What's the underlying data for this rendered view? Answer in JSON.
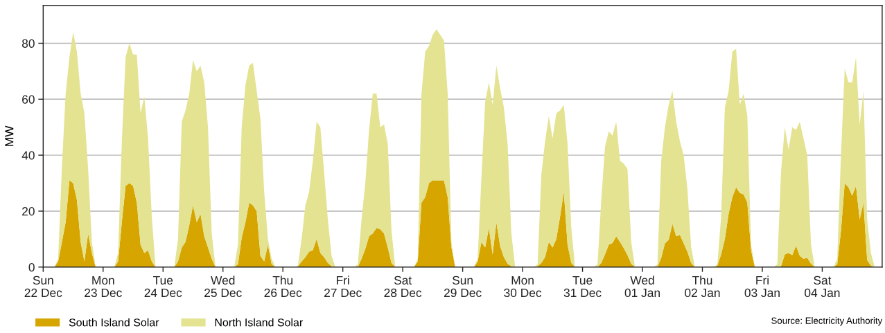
{
  "chart_data": {
    "type": "area",
    "stacked": true,
    "categories": [
      "Sun\n22 Dec",
      null,
      null,
      null,
      null,
      null,
      null,
      null,
      null,
      null,
      null,
      null,
      null,
      null,
      null,
      null,
      "Mon\n23 Dec",
      null,
      null,
      null,
      null,
      null,
      null,
      null,
      null,
      null,
      null,
      null,
      null,
      null,
      null,
      null,
      "Tue\n24 Dec",
      null,
      null,
      null,
      null,
      null,
      null,
      null,
      null,
      null,
      null,
      null,
      null,
      null,
      null,
      null,
      "Wed\n25 Dec",
      null,
      null,
      null,
      null,
      null,
      null,
      null,
      null,
      null,
      null,
      null,
      null,
      null,
      null,
      null,
      "Thu\n26 Dec",
      null,
      null,
      null,
      null,
      null,
      null,
      null,
      null,
      null,
      null,
      null,
      null,
      null,
      null,
      null,
      "Fri\n27 Dec",
      null,
      null,
      null,
      null,
      null,
      null,
      null,
      null,
      null,
      null,
      null,
      null,
      null,
      null,
      null,
      "Sat\n28 Dec",
      null,
      null,
      null,
      null,
      null,
      null,
      null,
      null,
      null,
      null,
      null,
      null,
      null,
      null,
      null,
      "Sun\n29 Dec",
      null,
      null,
      null,
      null,
      null,
      null,
      null,
      null,
      null,
      null,
      null,
      null,
      null,
      null,
      null,
      "Mon\n30 Dec",
      null,
      null,
      null,
      null,
      null,
      null,
      null,
      null,
      null,
      null,
      null,
      null,
      null,
      null,
      null,
      "Tue\n31 Dec",
      null,
      null,
      null,
      null,
      null,
      null,
      null,
      null,
      null,
      null,
      null,
      null,
      null,
      null,
      null,
      "Wed\n01 Jan",
      null,
      null,
      null,
      null,
      null,
      null,
      null,
      null,
      null,
      null,
      null,
      null,
      null,
      null,
      null,
      "Thu\n02 Jan",
      null,
      null,
      null,
      null,
      null,
      null,
      null,
      null,
      null,
      null,
      null,
      null,
      null,
      null,
      null,
      "Fri\n03 Jan",
      null,
      null,
      null,
      null,
      null,
      null,
      null,
      null,
      null,
      null,
      null,
      null,
      null,
      null,
      null,
      "Sat\n04 Jan",
      null,
      null,
      null,
      null,
      null,
      null,
      null,
      null,
      null,
      null,
      null,
      null,
      null,
      null,
      null
    ],
    "series": [
      {
        "name": "South Island Solar",
        "color": "#d6a500",
        "values": [
          0,
          0,
          0,
          0,
          2,
          9,
          16,
          31,
          30,
          24,
          9,
          2,
          12,
          5,
          0,
          0,
          0,
          0,
          0,
          0,
          2,
          16,
          29,
          30,
          29,
          23,
          8,
          5,
          6,
          2,
          0,
          0,
          0,
          0,
          0,
          0,
          2,
          7,
          9,
          15,
          22,
          16,
          19,
          11,
          7,
          3,
          0,
          0,
          0,
          0,
          0,
          0,
          1,
          10.5,
          16,
          23,
          22,
          20,
          4,
          2,
          8,
          1,
          0,
          0,
          0,
          0,
          0,
          0,
          0.2,
          2,
          3.5,
          5.5,
          6,
          10,
          5,
          3.5,
          1.5,
          0.3,
          0,
          0,
          0,
          0,
          0,
          0,
          0,
          3,
          6.5,
          11,
          12,
          14,
          13.5,
          12,
          7,
          1.5,
          0,
          0,
          0,
          0,
          0,
          0,
          2,
          23,
          25,
          30,
          31,
          31,
          31,
          31,
          25,
          7,
          0,
          0,
          0,
          0,
          0,
          0,
          2,
          9,
          7,
          14,
          4.5,
          16,
          7.5,
          3.5,
          1.2,
          0.3,
          0,
          0,
          0,
          0,
          0,
          0,
          0.3,
          1.5,
          3.5,
          9,
          7,
          10,
          18,
          27,
          8,
          1.5,
          0,
          0,
          0,
          0,
          0,
          0,
          0,
          1.5,
          4.5,
          8,
          8.6,
          11,
          9,
          6.8,
          4.3,
          1.2,
          0,
          0,
          0,
          0,
          0,
          0,
          0,
          3.3,
          8.5,
          9.7,
          15.5,
          11,
          11.5,
          8.5,
          5.5,
          1.5,
          0,
          0,
          0,
          0,
          0,
          0,
          0.5,
          4.5,
          10,
          19,
          25,
          28.5,
          26.5,
          26,
          23,
          6,
          0,
          0,
          0,
          0,
          0,
          0,
          0,
          0.3,
          4.5,
          5,
          4.3,
          7.7,
          4,
          3,
          3.3,
          1.2,
          0,
          0,
          0,
          0,
          0,
          0,
          1,
          13,
          30,
          28.5,
          25.5,
          29,
          17,
          23,
          2.5,
          0.5,
          0,
          0
        ]
      },
      {
        "name": "North Island Solar",
        "color": "#e4e391",
        "values": [
          0,
          0,
          0,
          0,
          1,
          27,
          46,
          44,
          54,
          53,
          53,
          53,
          23,
          4,
          0,
          0,
          0,
          0,
          0,
          0,
          3,
          29,
          46,
          50,
          47,
          53,
          47,
          56,
          40,
          16,
          0,
          0,
          0,
          0,
          0,
          0,
          8,
          45,
          47,
          47,
          52,
          54,
          53,
          55,
          43,
          9,
          0,
          0,
          0,
          0,
          0,
          0,
          7,
          39.5,
          49,
          49,
          51,
          43,
          49,
          25,
          2,
          2,
          0,
          0,
          0,
          0,
          0,
          0,
          0.3,
          8,
          18.5,
          21.5,
          32,
          42,
          45,
          30.5,
          15.5,
          3.7,
          0,
          0,
          0,
          0,
          0,
          0,
          1,
          14,
          23.5,
          38,
          50,
          48,
          36.5,
          39,
          37,
          11.5,
          0,
          0,
          0,
          0,
          0,
          0,
          1,
          39,
          52,
          49,
          52,
          54,
          52,
          50,
          37,
          2,
          0,
          0,
          0,
          0,
          0,
          0,
          1,
          23,
          52,
          52,
          53.5,
          56,
          56.5,
          53.5,
          42.8,
          11.7,
          0,
          0,
          0,
          0,
          0,
          0,
          0.7,
          31.5,
          41.5,
          45,
          39,
          45,
          38,
          31,
          36,
          12.5,
          0,
          0,
          0,
          0,
          0,
          0,
          1,
          22.5,
          38.5,
          40.5,
          38.4,
          41,
          29,
          30.2,
          30.7,
          7.8,
          0,
          0,
          0,
          0,
          0,
          0,
          1,
          34.7,
          41.5,
          48.3,
          47.5,
          41,
          33.5,
          31.5,
          22.5,
          5.5,
          0,
          0,
          0,
          0,
          0,
          0,
          0.5,
          13.5,
          47,
          44,
          52,
          49.5,
          31.5,
          36,
          31,
          2,
          0,
          0,
          0,
          0,
          0,
          0,
          1,
          33.7,
          45.5,
          37,
          45.7,
          41.3,
          48,
          43,
          36.7,
          6.8,
          0,
          0,
          0,
          0,
          0,
          0,
          2,
          27,
          41,
          37.5,
          40.5,
          46,
          34,
          40,
          14.5,
          4.5,
          0,
          0
        ]
      }
    ],
    "ylim": [
      0,
      93.5
    ],
    "yticks": [
      0,
      20,
      40,
      60,
      80
    ],
    "ylabel": "MW",
    "grid": "y",
    "legend": "bottom left",
    "annotations": [
      "Source: Electricity Authority"
    ]
  }
}
